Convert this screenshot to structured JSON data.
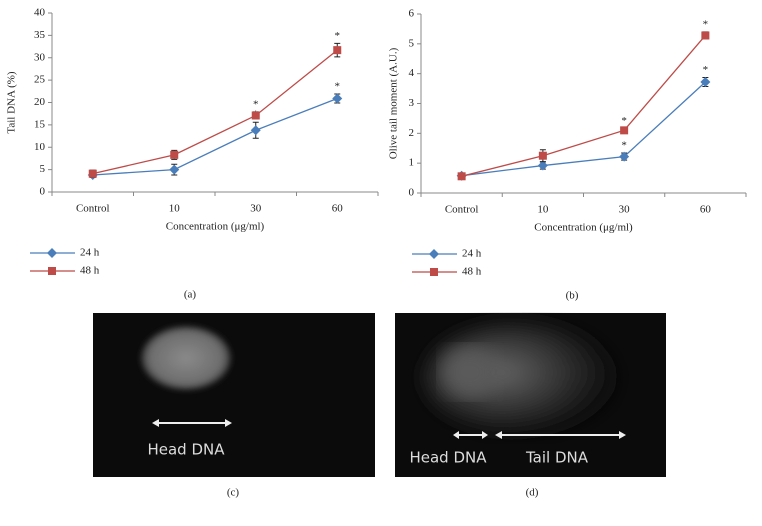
{
  "chart_data": [
    {
      "type": "line",
      "y_label": "Tail DNA (%)",
      "x_label": "Concentration (μg/ml)",
      "panel_label": "(a)",
      "categories": [
        "Control",
        "10",
        "30",
        "60"
      ],
      "ylim": [
        0,
        40
      ],
      "yticks": [
        0,
        5,
        10,
        15,
        20,
        25,
        30,
        35,
        40
      ],
      "series": [
        {
          "name": "24 h",
          "color": "#4a7ebb",
          "marker": "diamond",
          "values": [
            3.8,
            5.0,
            13.8,
            20.9
          ],
          "errors": [
            0.5,
            1.2,
            1.8,
            1.0
          ],
          "markers": [
            null,
            null,
            "*",
            "*"
          ]
        },
        {
          "name": "48 h",
          "color": "#be4b48",
          "marker": "square",
          "values": [
            4.1,
            8.3,
            17.1,
            31.7
          ],
          "errors": [
            0.8,
            1.0,
            0.8,
            1.5
          ],
          "markers": [
            null,
            null,
            "*",
            "*"
          ]
        }
      ]
    },
    {
      "type": "line",
      "y_label": "Olive tail moment (A.U.)",
      "x_label": "Concentration (μg/ml)",
      "panel_label": "(b)",
      "categories": [
        "Control",
        "10",
        "30",
        "60"
      ],
      "ylim": [
        0,
        6
      ],
      "yticks": [
        0,
        1,
        2,
        3,
        4,
        5,
        6
      ],
      "series": [
        {
          "name": "24 h",
          "color": "#4a7ebb",
          "marker": "diamond",
          "values": [
            0.58,
            0.92,
            1.22,
            3.72
          ],
          "errors": [
            0.05,
            0.12,
            0.12,
            0.15
          ],
          "markers": [
            null,
            null,
            "*",
            "*"
          ]
        },
        {
          "name": "48 h",
          "color": "#be4b48",
          "marker": "square",
          "values": [
            0.56,
            1.25,
            2.1,
            5.28
          ],
          "errors": [
            0.05,
            0.2,
            0.07,
            0.12
          ],
          "markers": [
            null,
            null,
            "*",
            "*"
          ]
        }
      ]
    }
  ],
  "panels": [
    {
      "label": "(c)",
      "annotations": [
        "Head DNA"
      ]
    },
    {
      "label": "(d)",
      "annotations": [
        "Head DNA",
        "Tail DNA"
      ]
    }
  ]
}
